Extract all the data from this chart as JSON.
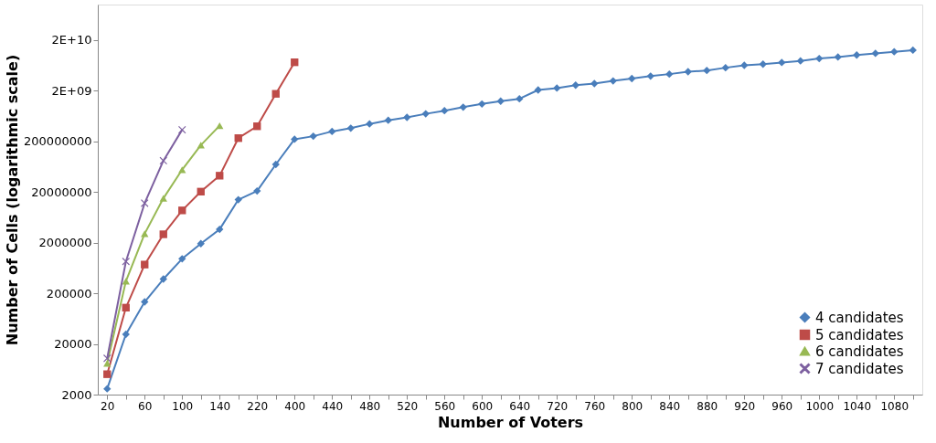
{
  "chart_data": {
    "type": "line",
    "xlabel": "Number of Voters",
    "ylabel": "Number of Cells (logarithmic scale)",
    "categories": [
      "20",
      null,
      "60",
      null,
      "100",
      null,
      "140",
      null,
      "220",
      null,
      "400",
      null,
      "440",
      null,
      "480",
      null,
      "520",
      null,
      "560",
      null,
      "600",
      null,
      "640",
      null,
      "720",
      null,
      "760",
      null,
      "800",
      null,
      "840",
      null,
      "880",
      null,
      "920",
      null,
      "960",
      null,
      "1000",
      null,
      "1040",
      null,
      "1080",
      null
    ],
    "series": [
      {
        "name": "4 candidates",
        "color": "#4a7ebb",
        "marker": "diamond",
        "values": [
          2600,
          31000,
          135000,
          381000,
          958000,
          1910000,
          3650000,
          14100000,
          20900000,
          70000000,
          220000000,
          252000000,
          313000000,
          363000000,
          441000000,
          520000000,
          593000000,
          697000000,
          804000000,
          944000000,
          1090000000,
          1240000000,
          1380000000,
          2060000000,
          2250000000,
          2560000000,
          2750000000,
          3110000000,
          3470000000,
          3870000000,
          4240000000,
          4730000000,
          5000000000,
          5670000000,
          6320000000,
          6670000000,
          7180000000,
          7730000000,
          8610000000,
          9230000000,
          10100000000,
          10900000000,
          11700000000,
          12600000000
        ]
      },
      {
        "name": "5 candidates",
        "color": "#be4b48",
        "marker": "square",
        "values": [
          5050,
          104000,
          737000,
          2920000,
          8650000,
          20300000,
          41900000,
          231000000,
          396000000,
          1730000000,
          7260000000,
          null,
          null,
          null,
          null,
          null,
          null,
          null,
          null,
          null,
          null,
          null,
          null,
          null,
          null,
          null,
          null,
          null,
          null,
          null,
          null,
          null,
          null,
          null,
          null,
          null,
          null,
          null,
          null,
          null,
          null,
          null,
          null,
          null
        ]
      },
      {
        "name": "6 candidates",
        "color": "#98b954",
        "marker": "triangle",
        "values": [
          8280,
          347000,
          3000000,
          15000000,
          55000000,
          168000000,
          406000000,
          null,
          null,
          null,
          null,
          null,
          null,
          null,
          null,
          null,
          null,
          null,
          null,
          null,
          null,
          null,
          null,
          null,
          null,
          null,
          null,
          null,
          null,
          null,
          null,
          null,
          null,
          null,
          null,
          null,
          null,
          null,
          null,
          null,
          null,
          null,
          null,
          null
        ]
      },
      {
        "name": "7 candidates",
        "color": "#7d60a0",
        "marker": "cross",
        "values": [
          10400,
          850000,
          12000000,
          82800000,
          337000000,
          null,
          null,
          null,
          null,
          null,
          null,
          null,
          null,
          null,
          null,
          null,
          null,
          null,
          null,
          null,
          null,
          null,
          null,
          null,
          null,
          null,
          null,
          null,
          null,
          null,
          null,
          null,
          null,
          null,
          null,
          null,
          null,
          null,
          null,
          null,
          null,
          null,
          null,
          null
        ]
      }
    ],
    "log": "y",
    "ylim": [
      2000,
      100000000000
    ],
    "yticks": [
      2000,
      20000,
      200000,
      2000000,
      20000000,
      200000000,
      {
        "value": 2000000000,
        "label": "2E+09"
      },
      {
        "value": 20000000000,
        "label": "2E+10"
      }
    ],
    "grid": false,
    "legend": "bottom right"
  }
}
